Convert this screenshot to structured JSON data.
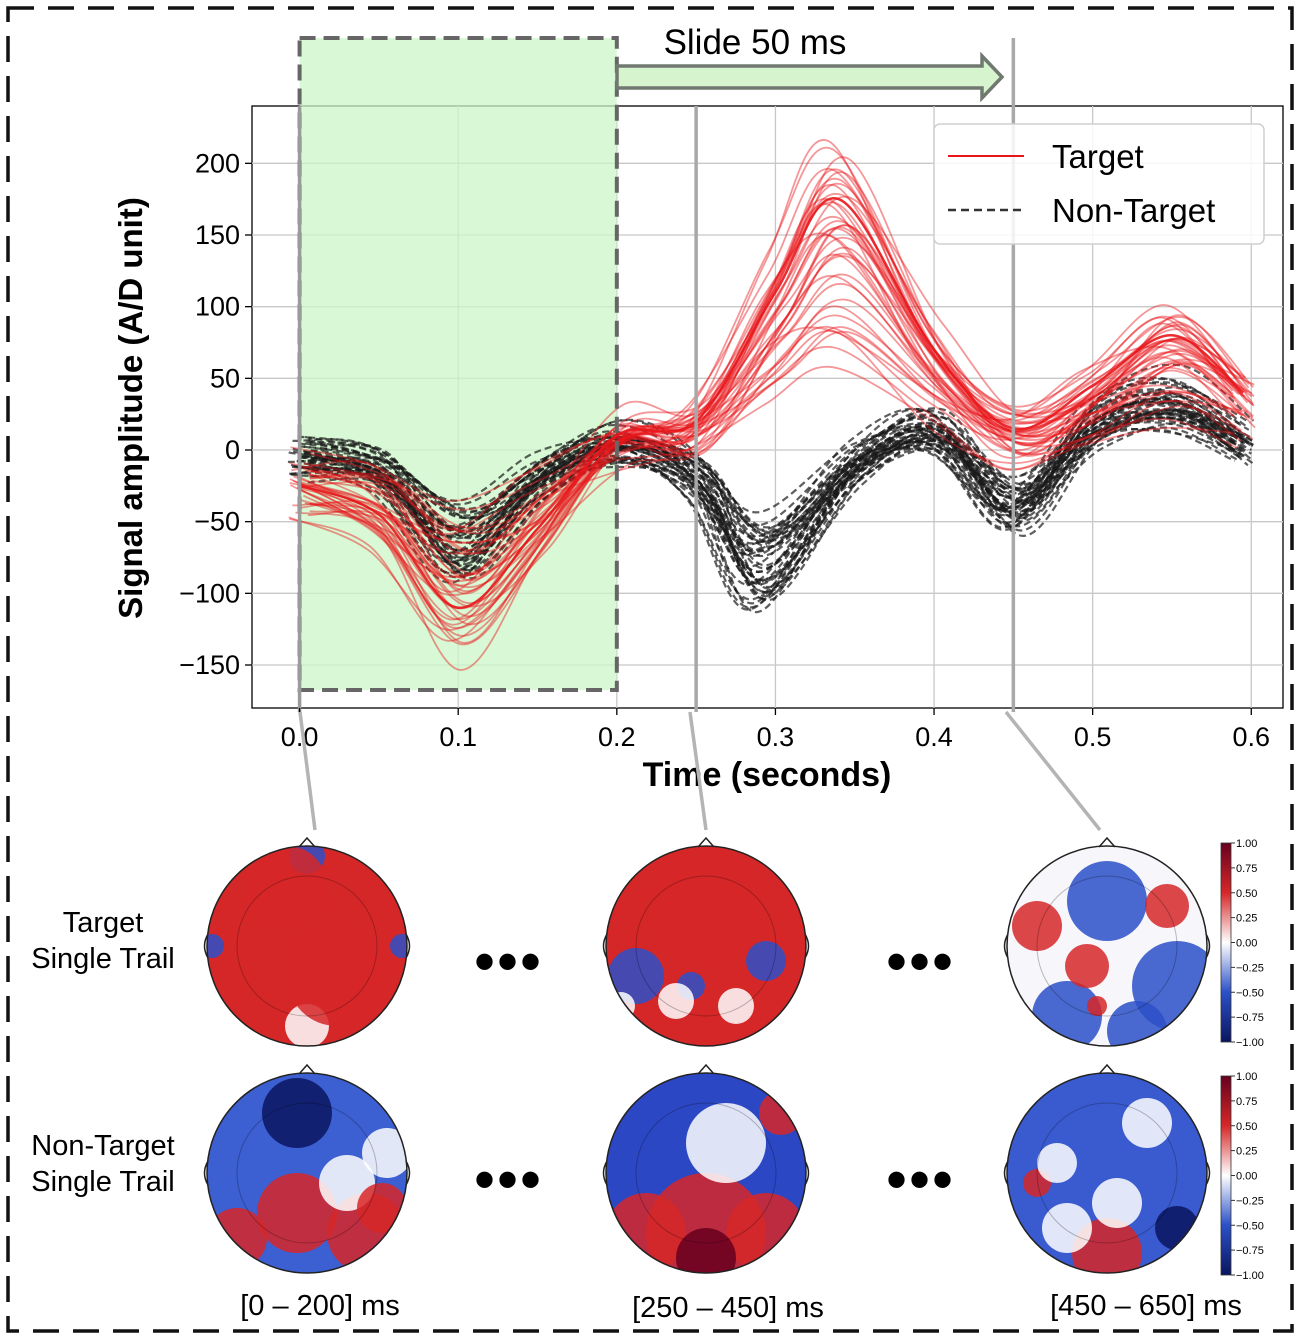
{
  "figure": {
    "slide_label": "Slide 50 ms",
    "row_labels": [
      {
        "line1": "Target",
        "line2": "Single Trail"
      },
      {
        "line1": "Non-Target",
        "line2": "Single Trail"
      }
    ],
    "window_labels": [
      "[0 – 200] ms",
      "[250 – 450] ms",
      "[450 – 650] ms"
    ],
    "ellipsis": "•••",
    "colorbar": {
      "ticks": [
        "1.00",
        "0.75",
        "0.50",
        "0.25",
        "0.00",
        "−0.25",
        "−0.50",
        "−0.75",
        "−1.00"
      ],
      "values": [
        1.0,
        0.75,
        0.5,
        0.25,
        0.0,
        -0.25,
        -0.5,
        -0.75,
        -1.0
      ],
      "colors": {
        "max": "#67001f",
        "pos": "#d62728",
        "zero": "#ffffff",
        "neg": "#2b50c8",
        "min": "#0a1560"
      }
    }
  },
  "chart_data": {
    "type": "line",
    "xlabel": "Time (seconds)",
    "ylabel": "Signal amplitude (A/D unit)",
    "xlim": [
      -0.03,
      0.62
    ],
    "ylim": [
      -180,
      240
    ],
    "xticks": [
      0.0,
      0.1,
      0.2,
      0.3,
      0.4,
      0.5,
      0.6
    ],
    "xtick_labels": [
      "0.0",
      "0.1",
      "0.2",
      "0.3",
      "0.4",
      "0.5",
      "0.6"
    ],
    "yticks": [
      -150,
      -100,
      -50,
      0,
      50,
      100,
      150,
      200
    ],
    "ytick_labels": [
      "−150",
      "−100",
      "−50",
      "0",
      "50",
      "100",
      "150",
      "200"
    ],
    "grid": true,
    "legend_position": "top-right",
    "highlight_window": {
      "x": [
        0.0,
        0.2
      ],
      "color": "#ccf7c8"
    },
    "window_markers": [
      0.0,
      0.25,
      0.45
    ],
    "series": [
      {
        "name": "Target",
        "color": "#e8161b",
        "style": "solid",
        "x": [
          0.0,
          0.05,
          0.1,
          0.15,
          0.2,
          0.25,
          0.3,
          0.34,
          0.4,
          0.45,
          0.5,
          0.55,
          0.595
        ],
        "values": [
          -25,
          -45,
          -110,
          -55,
          10,
          20,
          110,
          175,
          70,
          15,
          45,
          80,
          40
        ]
      },
      {
        "name": "Non-Target",
        "color": "#1a1a1a",
        "style": "dashed",
        "x": [
          0.0,
          0.05,
          0.1,
          0.15,
          0.2,
          0.25,
          0.29,
          0.35,
          0.4,
          0.45,
          0.5,
          0.55,
          0.595
        ],
        "values": [
          -5,
          -15,
          -70,
          -20,
          5,
          -20,
          -85,
          -10,
          15,
          -40,
          20,
          35,
          5
        ]
      }
    ]
  }
}
